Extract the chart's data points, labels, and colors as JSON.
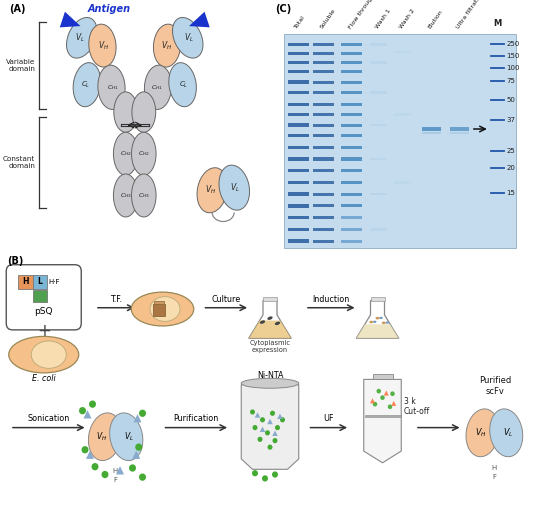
{
  "figure_width": 5.5,
  "figure_height": 5.11,
  "dpi": 100,
  "bg_color": "#ffffff",
  "panel_A": {
    "label": "(A)",
    "vh_color": "#f5c49a",
    "vl_color": "#b8d4e8",
    "ch_color": "#c8c8cc",
    "antigen_color": "#1a3acc"
  },
  "panel_B": {
    "label": "(B)",
    "vh_color": "#f5c49a",
    "vl_color": "#b8d4e8",
    "ecoli_color": "#f5c08a",
    "ecoli_inner": "#f8ddb0"
  },
  "panel_C": {
    "label": "(C)",
    "gel_bg": "#c8dff0",
    "lane_labels": [
      "Total",
      "Soluble",
      "Flow through",
      "Wash 1",
      "Wash 2",
      "Elution",
      "Ultra filtration"
    ],
    "mw_labels": [
      "250",
      "150",
      "100",
      "75",
      "50",
      "37",
      "25",
      "20",
      "15"
    ]
  }
}
